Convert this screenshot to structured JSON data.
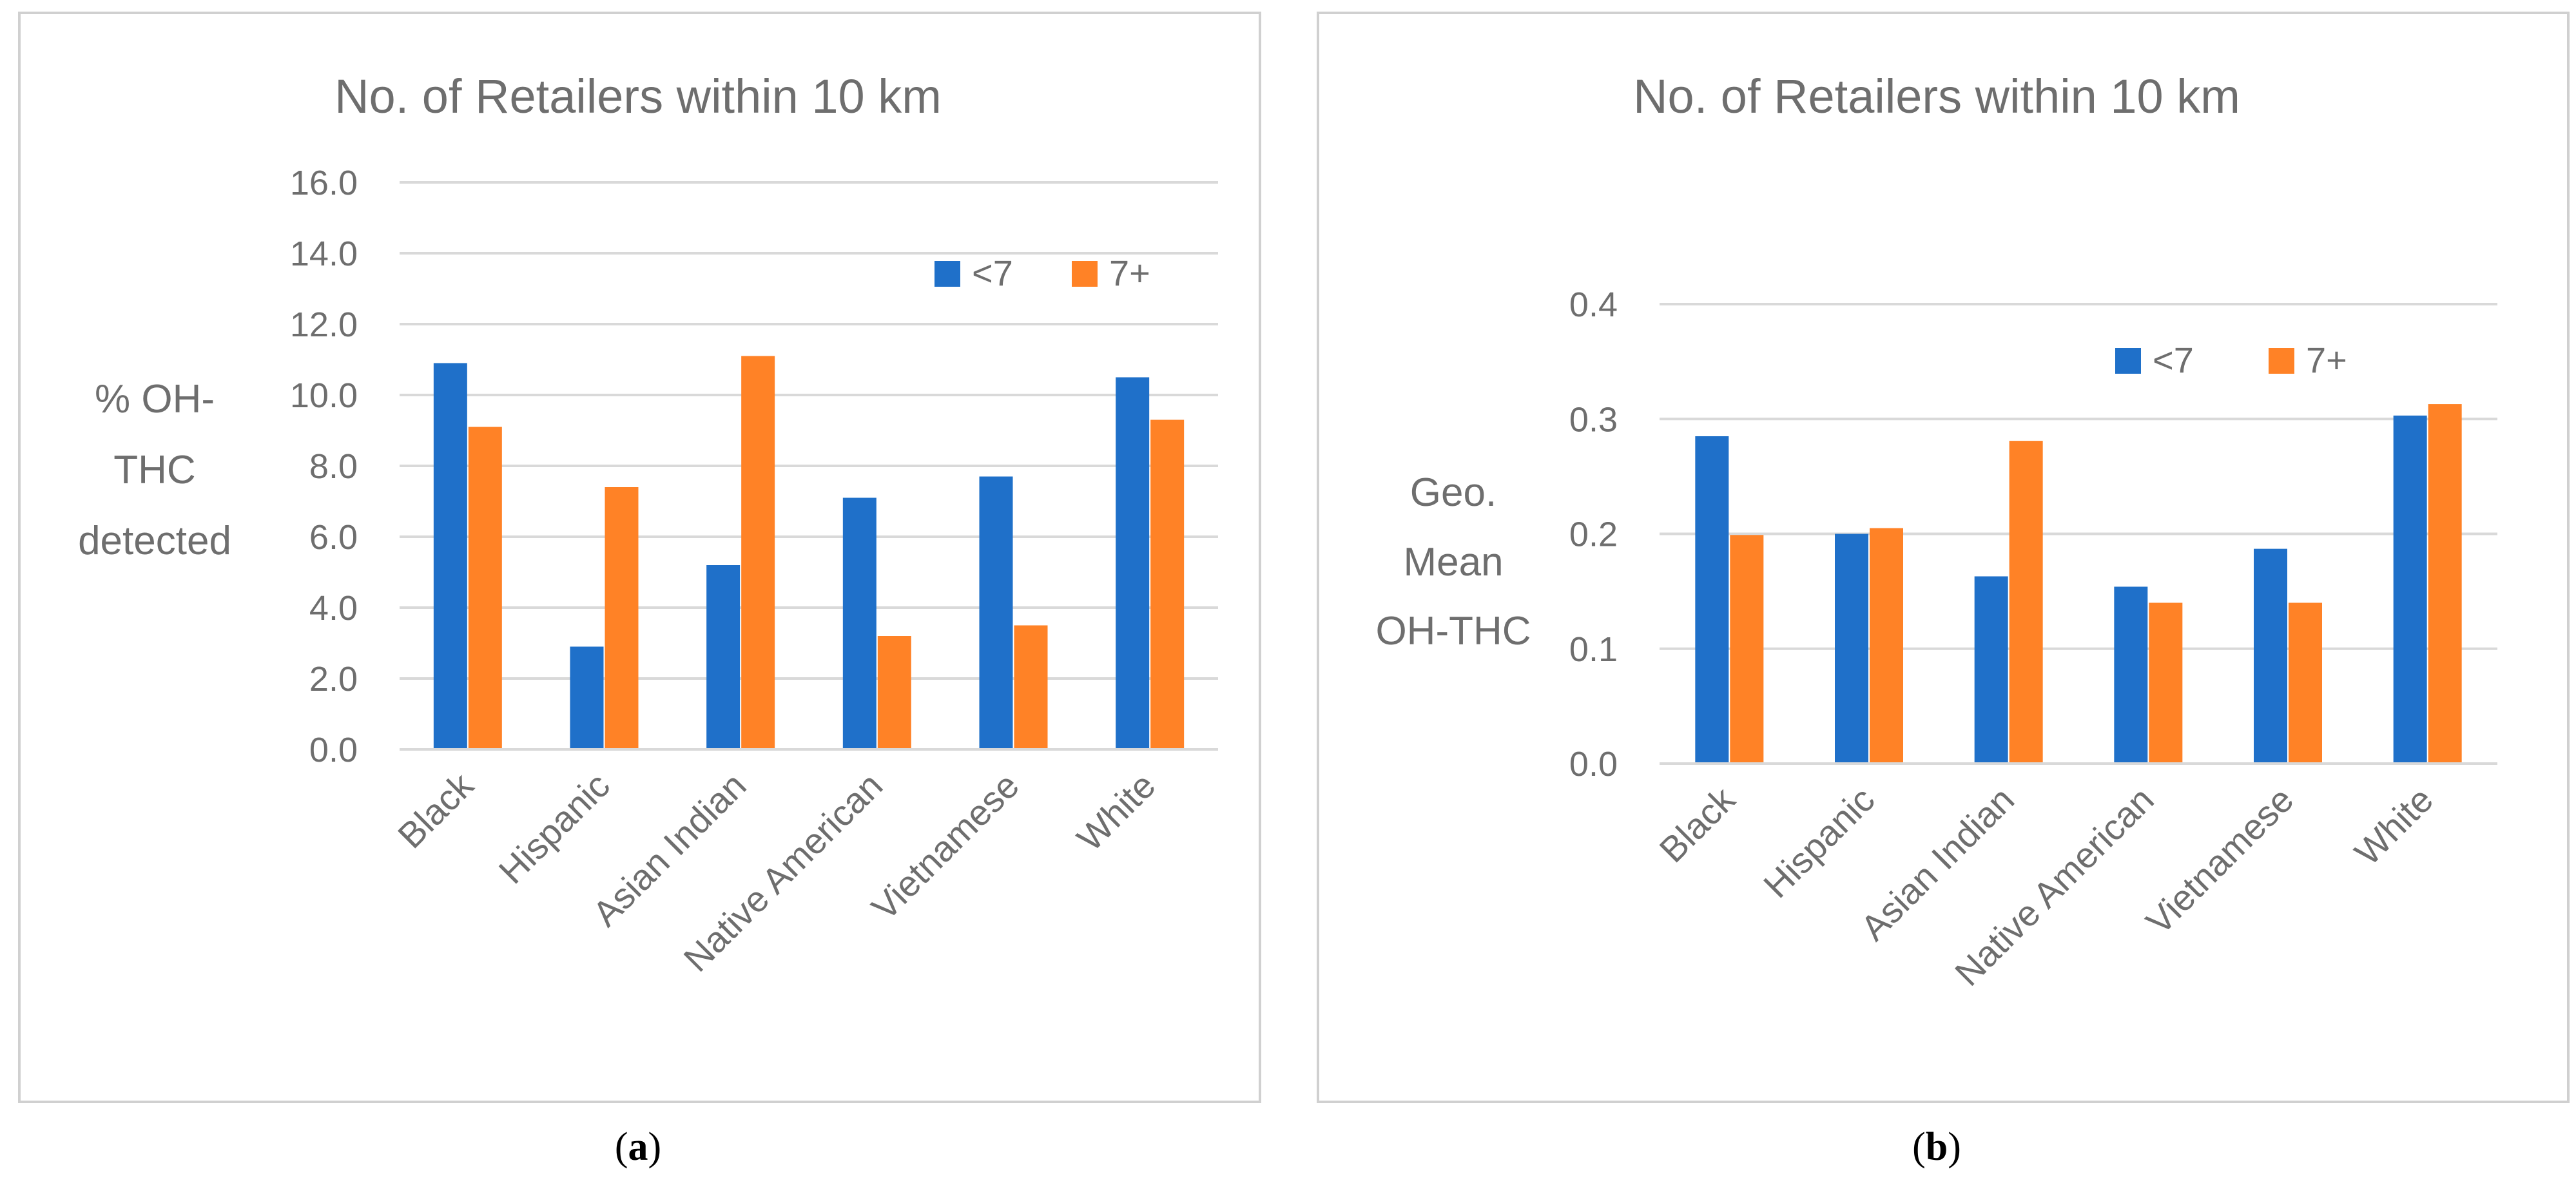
{
  "colors": {
    "series1": "#1f70c9",
    "series2": "#ff8226",
    "grid": "#d9d9d9",
    "text": "#6e6e6e",
    "border": "#d0d0d0"
  },
  "chart_data": [
    {
      "type": "bar",
      "title": "No. of Retailers within 10 km",
      "ylabel_lines": [
        "% OH-",
        "THC",
        "detected"
      ],
      "categories": [
        "Black",
        "Hispanic",
        "Asian Indian",
        "Native American",
        "Vietnamese",
        "White"
      ],
      "series": [
        {
          "name": "<7",
          "values": [
            10.9,
            2.9,
            5.2,
            7.1,
            7.7,
            10.5
          ]
        },
        {
          "name": "7+",
          "values": [
            9.1,
            7.4,
            11.1,
            3.2,
            3.5,
            9.3
          ]
        }
      ],
      "ylim": [
        0,
        16
      ],
      "yticks": [
        "0.0",
        "2.0",
        "4.0",
        "6.0",
        "8.0",
        "10.0",
        "12.0",
        "14.0",
        "16.0"
      ],
      "grid": true,
      "legend_position": "top-right",
      "caption": {
        "open": "(",
        "letter": "a",
        "close": ")"
      }
    },
    {
      "type": "bar",
      "title": "No. of Retailers within 10 km",
      "ylabel_lines": [
        "Geo.",
        "Mean",
        "OH-THC"
      ],
      "categories": [
        "Black",
        "Hispanic",
        "Asian Indian",
        "Native American",
        "Vietnamese",
        "White"
      ],
      "series": [
        {
          "name": "<7",
          "values": [
            0.285,
            0.2,
            0.163,
            0.154,
            0.187,
            0.303
          ]
        },
        {
          "name": "7+",
          "values": [
            0.199,
            0.205,
            0.281,
            0.14,
            0.14,
            0.313
          ]
        }
      ],
      "ylim": [
        0,
        0.4
      ],
      "yticks": [
        "0.0",
        "0.1",
        "0.2",
        "0.3",
        "0.4"
      ],
      "grid": true,
      "legend_position": "top-right",
      "caption": {
        "open": "(",
        "letter": "b",
        "close": ")"
      }
    }
  ]
}
